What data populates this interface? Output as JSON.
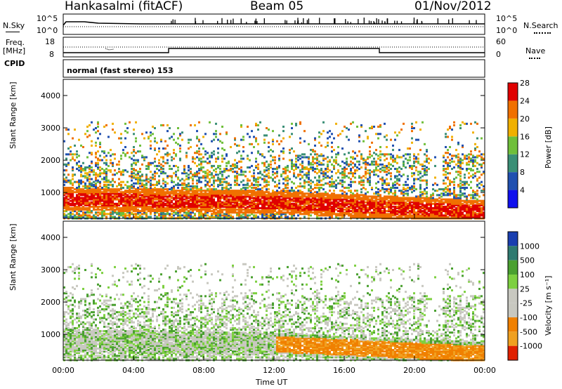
{
  "header": {
    "station": "Hankasalmi (fitACF)",
    "beam": "Beam 05",
    "date": "01/Nov/2012"
  },
  "summary": {
    "nsky_label": "N.Sky",
    "nsky_ticks": [
      "10^5",
      "10^0"
    ],
    "nsearch_label": "N.Search",
    "nsearch_ticks": [
      "10^5",
      "10^0"
    ],
    "freq_label_1": "Freq.",
    "freq_label_2": "[MHz]",
    "freq_ticks": [
      "18",
      "8"
    ],
    "nave_label": "Nave",
    "nave_ticks": [
      "60",
      "0"
    ],
    "cpid_label": "CPID",
    "cpid_text": "normal (fast stereo) 153"
  },
  "chart_data": [
    {
      "type": "heatmap",
      "name": "power",
      "ylabel": "Slant Range [km]",
      "yticks": [
        "1000",
        "2000",
        "3000",
        "4000"
      ],
      "ylim": [
        200,
        4500
      ],
      "colorbar_label": "Power [dB]",
      "colorbar_ticks": [
        "4",
        "8",
        "12",
        "16",
        "20",
        "24",
        "28"
      ],
      "colors": [
        "#1010ee",
        "#2050b0",
        "#3a8f76",
        "#6fbf3a",
        "#f0b000",
        "#f07000",
        "#e00000"
      ]
    },
    {
      "type": "heatmap",
      "name": "velocity",
      "ylabel": "Slant Range [km]",
      "yticks": [
        "1000",
        "2000",
        "3000",
        "4000"
      ],
      "ylim": [
        200,
        4500
      ],
      "colorbar_label": "Velocity [m s⁻¹]",
      "colorbar_ticks": [
        "1000",
        "500",
        "100",
        "25",
        "-25",
        "-100",
        "-500",
        "-1000"
      ],
      "colors": [
        "#1a3fb0",
        "#2f7a70",
        "#4aa030",
        "#7dd040",
        "#c8c8c0",
        "#c8c8c0",
        "#f08000",
        "#f0a020",
        "#e02000"
      ]
    }
  ],
  "xaxis": {
    "xlabel": "Time UT",
    "xticks": [
      "00:00",
      "04:00",
      "08:00",
      "12:00",
      "16:00",
      "20:00",
      "00:00"
    ]
  }
}
